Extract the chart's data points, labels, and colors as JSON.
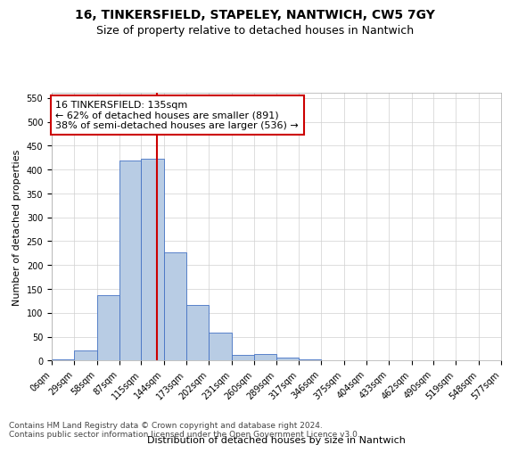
{
  "title": "16, TINKERSFIELD, STAPELEY, NANTWICH, CW5 7GY",
  "subtitle": "Size of property relative to detached houses in Nantwich",
  "xlabel": "Distribution of detached houses by size in Nantwich",
  "ylabel": "Number of detached properties",
  "bin_edges": [
    0,
    29,
    58,
    87,
    115,
    144,
    173,
    202,
    231,
    260,
    289,
    317,
    346,
    375,
    404,
    433,
    462,
    490,
    519,
    548,
    577
  ],
  "bar_heights": [
    2,
    22,
    137,
    418,
    422,
    226,
    116,
    58,
    12,
    14,
    7,
    2,
    1,
    0,
    1,
    0,
    0,
    1,
    0,
    0
  ],
  "bar_color": "#b8cce4",
  "bar_edge_color": "#4472c4",
  "property_size": 135,
  "property_line_color": "#cc0000",
  "annotation_line1": "16 TINKERSFIELD: 135sqm",
  "annotation_line2": "← 62% of detached houses are smaller (891)",
  "annotation_line3": "38% of semi-detached houses are larger (536) →",
  "annotation_box_color": "#ffffff",
  "annotation_box_edge_color": "#cc0000",
  "ylim": [
    0,
    560
  ],
  "yticks": [
    0,
    50,
    100,
    150,
    200,
    250,
    300,
    350,
    400,
    450,
    500,
    550
  ],
  "footnote": "Contains HM Land Registry data © Crown copyright and database right 2024.\nContains public sector information licensed under the Open Government Licence v3.0.",
  "background_color": "#ffffff",
  "grid_color": "#d0d0d0",
  "title_fontsize": 10,
  "subtitle_fontsize": 9,
  "axis_label_fontsize": 8,
  "tick_fontsize": 7,
  "annotation_fontsize": 8,
  "footnote_fontsize": 6.5
}
